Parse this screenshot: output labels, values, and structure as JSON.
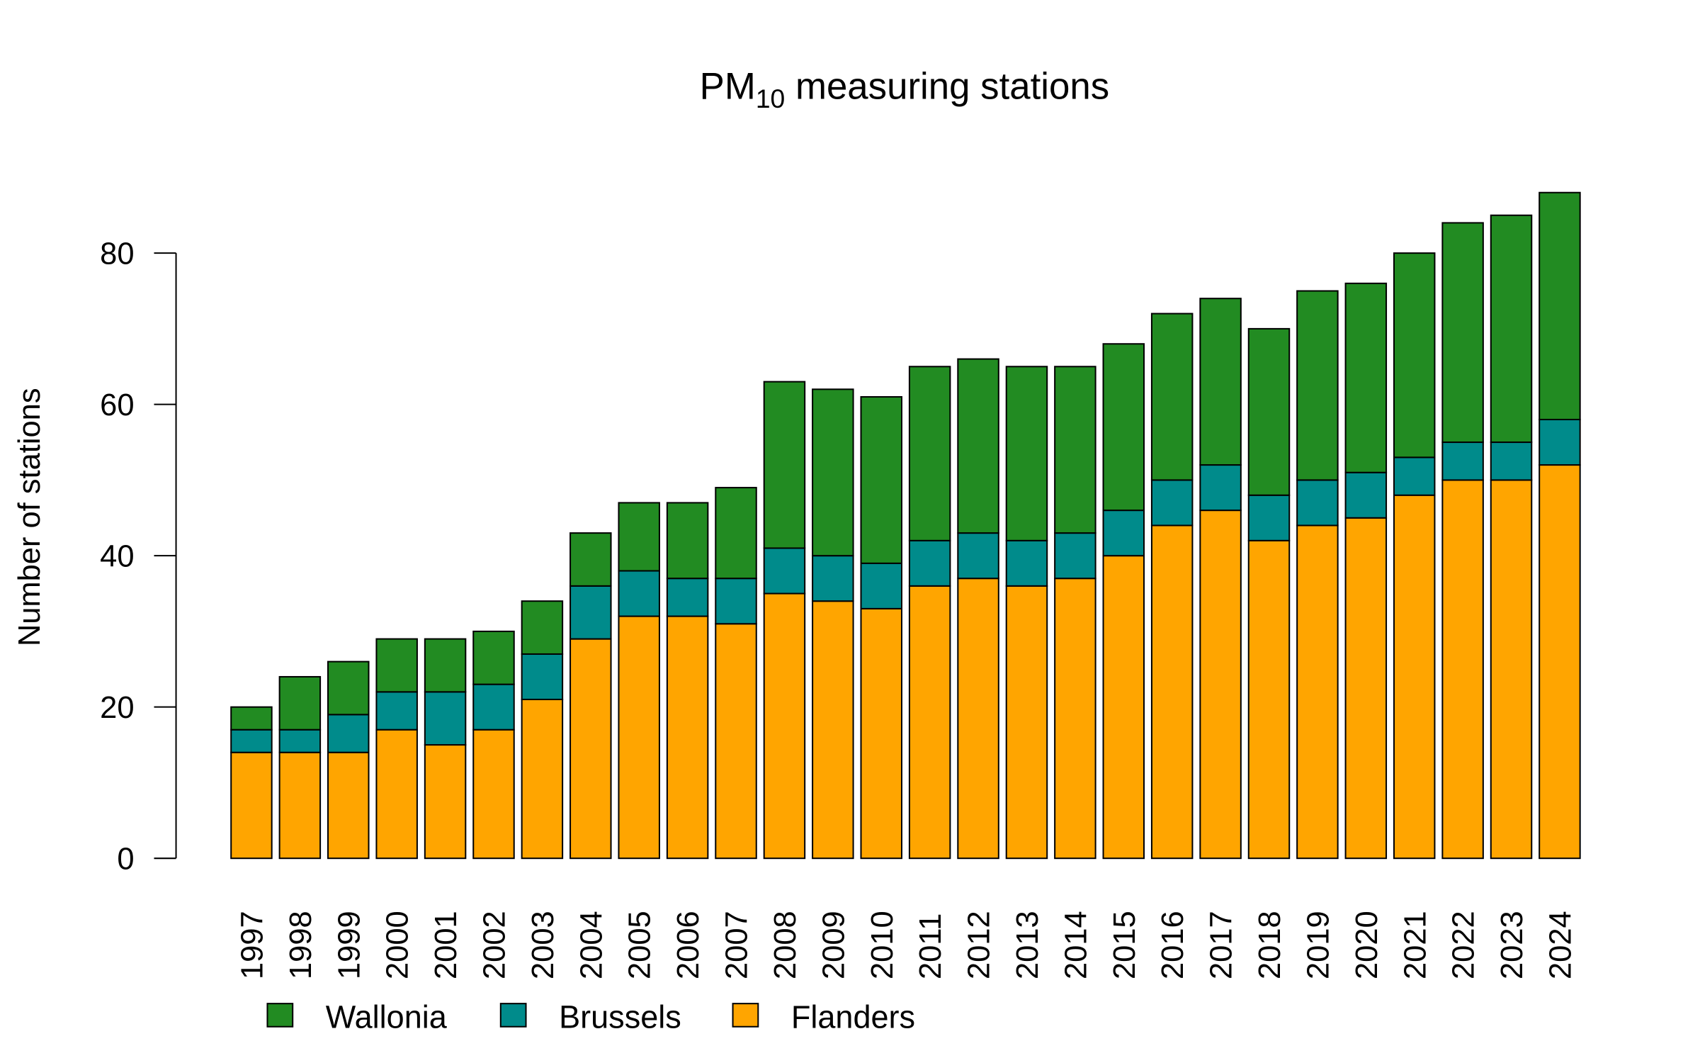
{
  "chart_data": {
    "type": "bar",
    "stacked": true,
    "title": "PM10 measuring stations",
    "title_parts": {
      "main": "PM",
      "sub": "10",
      "rest": " measuring stations"
    },
    "xlabel": "",
    "ylabel": "Number of stations",
    "ylim": [
      0,
      90
    ],
    "yticks": [
      0,
      20,
      40,
      60,
      80
    ],
    "grid": false,
    "legend_placement": "bottom-left",
    "categories": [
      "1997",
      "1998",
      "1999",
      "2000",
      "2001",
      "2002",
      "2003",
      "2004",
      "2005",
      "2006",
      "2007",
      "2008",
      "2009",
      "2010",
      "2011",
      "2012",
      "2013",
      "2014",
      "2015",
      "2016",
      "2017",
      "2018",
      "2019",
      "2020",
      "2021",
      "2022",
      "2023",
      "2024"
    ],
    "series": [
      {
        "name": "Flanders",
        "color": "#FFA500",
        "values": [
          14,
          14,
          14,
          17,
          15,
          17,
          21,
          29,
          32,
          32,
          31,
          35,
          34,
          33,
          36,
          37,
          36,
          37,
          40,
          44,
          46,
          42,
          44,
          45,
          48,
          50,
          50,
          52
        ]
      },
      {
        "name": "Brussels",
        "color": "#008B8B",
        "values": [
          3,
          3,
          5,
          5,
          7,
          6,
          6,
          7,
          6,
          5,
          6,
          6,
          6,
          6,
          6,
          6,
          6,
          6,
          6,
          6,
          6,
          6,
          6,
          6,
          5,
          5,
          5,
          6
        ]
      },
      {
        "name": "Wallonia",
        "color": "#228B22",
        "values": [
          3,
          7,
          7,
          7,
          7,
          7,
          7,
          7,
          9,
          10,
          12,
          22,
          22,
          22,
          23,
          23,
          23,
          22,
          22,
          22,
          22,
          22,
          25,
          25,
          27,
          29,
          30,
          30
        ]
      }
    ],
    "legend_order": [
      "Wallonia",
      "Brussels",
      "Flanders"
    ]
  }
}
